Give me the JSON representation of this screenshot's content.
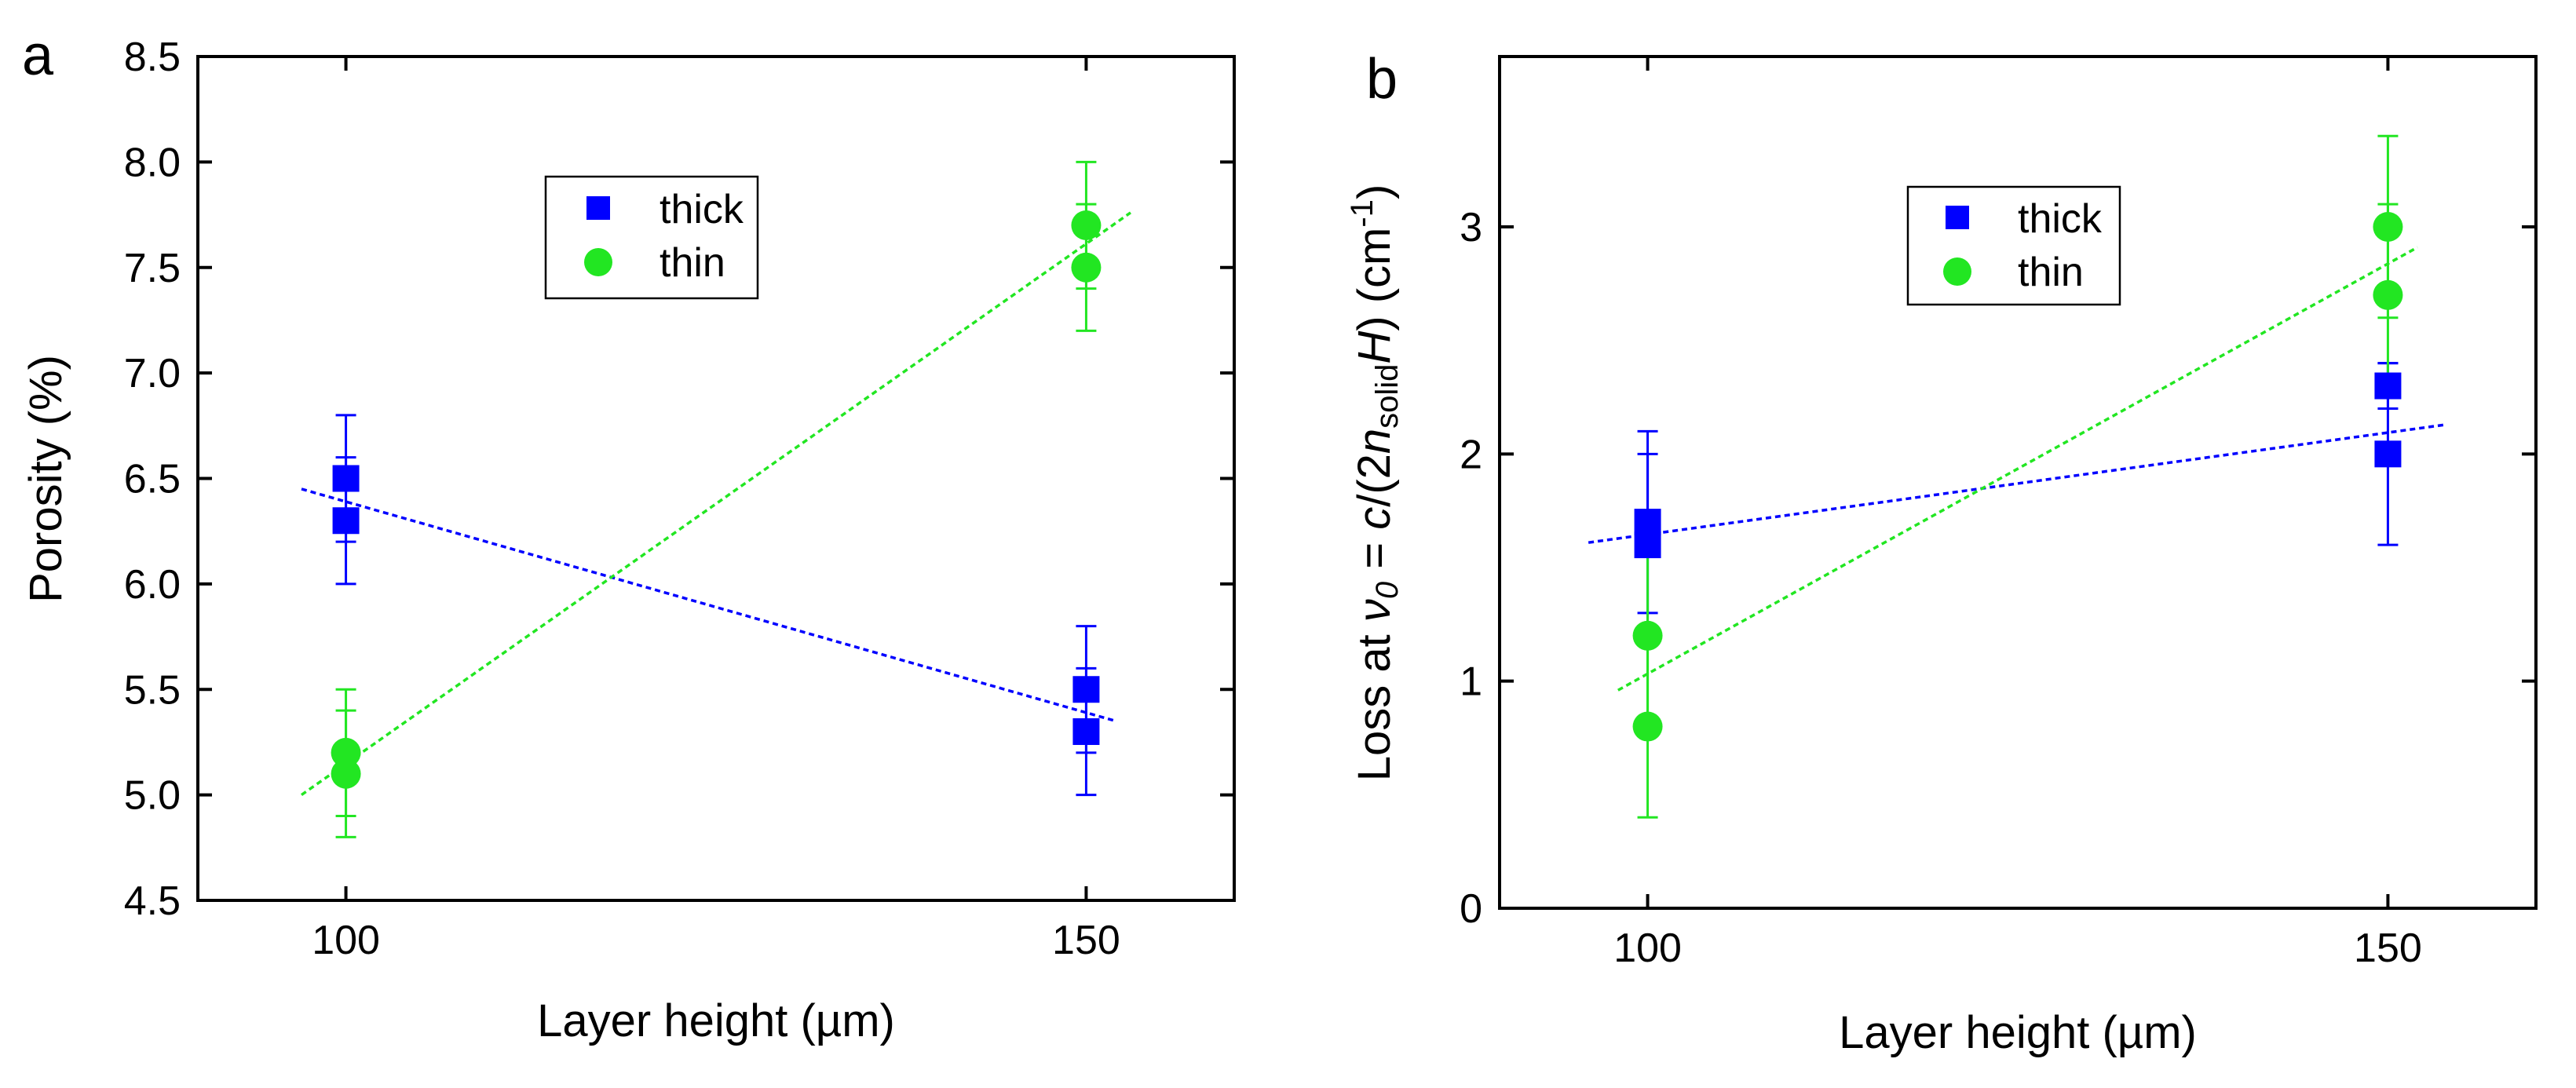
{
  "figure": {
    "colors": {
      "thick": "#0000ff",
      "thin": "#22e622",
      "axis": "#000000"
    }
  },
  "chart_data": [
    {
      "panel": "a",
      "type": "scatter",
      "title": "",
      "xlabel": "Layer height (µm)",
      "ylabel": "Porosity (%)",
      "xlim": [
        90,
        160
      ],
      "ylim": [
        4.5,
        8.5
      ],
      "x_ticks": [
        100,
        150
      ],
      "x_tick_labels": [
        "100",
        "150"
      ],
      "y_ticks": [
        4.5,
        5.0,
        5.5,
        6.0,
        6.5,
        7.0,
        7.5,
        8.0,
        8.5
      ],
      "y_tick_labels": [
        "4.5",
        "5.0",
        "5.5",
        "6.0",
        "6.5",
        "7.0",
        "7.5",
        "8.0",
        "8.5"
      ],
      "legend": {
        "placement": "upper-center",
        "entries": [
          "thick",
          "thin"
        ]
      },
      "series": [
        {
          "name": "thick",
          "marker": "square",
          "color": "#0000ff",
          "points": [
            {
              "x": 100,
              "y": 6.5,
              "err": 0.3
            },
            {
              "x": 100,
              "y": 6.3,
              "err": 0.3
            },
            {
              "x": 150,
              "y": 5.5,
              "err": 0.3
            },
            {
              "x": 150,
              "y": 5.3,
              "err": 0.3
            }
          ],
          "fit": {
            "x": [
              97,
              152
            ],
            "y": [
              6.45,
              5.35
            ]
          }
        },
        {
          "name": "thin",
          "marker": "circle",
          "color": "#22e622",
          "points": [
            {
              "x": 100,
              "y": 5.2,
              "err": 0.3
            },
            {
              "x": 100,
              "y": 5.1,
              "err": 0.3
            },
            {
              "x": 150,
              "y": 7.7,
              "err": 0.3
            },
            {
              "x": 150,
              "y": 7.5,
              "err": 0.3
            }
          ],
          "fit": {
            "x": [
              97,
              153
            ],
            "y": [
              5.0,
              7.76
            ]
          }
        }
      ]
    },
    {
      "panel": "b",
      "type": "scatter",
      "title": "",
      "xlabel": "Layer height (µm)",
      "ylabel_parts": {
        "t1": "Loss at ",
        "nu": "ν",
        "sub0": "0",
        "t2": " = ",
        "c": "c",
        "t3": "/(2",
        "n": "n",
        "sub_solid": "solid",
        "H": "H",
        "t4": ") (cm",
        "sup": "-1",
        "t5": ")"
      },
      "xlim": [
        90,
        160
      ],
      "ylim": [
        0,
        3.75
      ],
      "x_ticks": [
        100,
        150
      ],
      "x_tick_labels": [
        "100",
        "150"
      ],
      "y_ticks": [
        0,
        1,
        2,
        3
      ],
      "y_tick_labels": [
        "0",
        "1",
        "2",
        "3"
      ],
      "legend": {
        "placement": "upper-center",
        "entries": [
          "thick",
          "thin"
        ]
      },
      "series": [
        {
          "name": "thick",
          "marker": "square",
          "color": "#0000ff",
          "points": [
            {
              "x": 100,
              "y": 1.7,
              "err": 0.4
            },
            {
              "x": 100,
              "y": 1.6,
              "err": 0.4
            },
            {
              "x": 150,
              "y": 2.3,
              "err": 0.1
            },
            {
              "x": 150,
              "y": 2.0,
              "err": 0.4
            }
          ],
          "fit": {
            "x": [
              96,
              154
            ],
            "y": [
              1.61,
              2.13
            ]
          }
        },
        {
          "name": "thin",
          "marker": "circle",
          "color": "#22e622",
          "points": [
            {
              "x": 100,
              "y": 1.2,
              "err": 0.4
            },
            {
              "x": 100,
              "y": 0.8,
              "err": 0.4
            },
            {
              "x": 150,
              "y": 3.0,
              "err": 0.4
            },
            {
              "x": 150,
              "y": 2.7,
              "err": 0.4
            }
          ],
          "fit": {
            "x": [
              98,
              152
            ],
            "y": [
              0.96,
              2.91
            ]
          }
        }
      ]
    }
  ]
}
